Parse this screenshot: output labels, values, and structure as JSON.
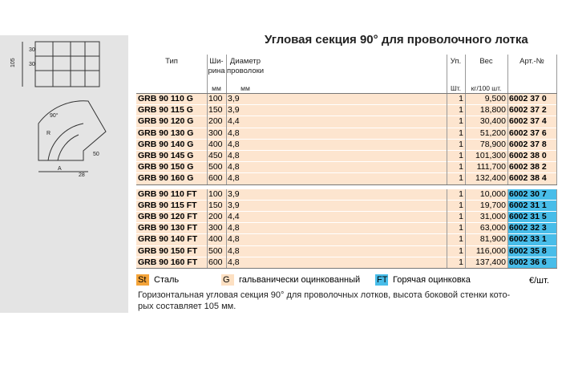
{
  "title": "Угловая секция 90° для проволочного лотка",
  "drawing": {
    "labels": [
      "105",
      "30",
      "30",
      "90°",
      "R",
      "A",
      "28",
      "50"
    ]
  },
  "table": {
    "headers": [
      {
        "lines": [
          "Тип"
        ]
      },
      {
        "lines": [
          "Ши-",
          "рина"
        ],
        "unit": "мм"
      },
      {
        "lines": [
          "Диаметр",
          "проволоки"
        ],
        "unit": "мм"
      },
      {
        "lines": [
          "Уп."
        ],
        "unit": "Шт."
      },
      {
        "lines": [
          "Вес"
        ],
        "unit": "кг/100 шт."
      },
      {
        "lines": [
          "Арт.-№"
        ]
      }
    ],
    "groups": [
      {
        "finish": "G",
        "rows": [
          [
            "GRB 90 110 G",
            "100",
            "3,9",
            "1",
            "9,500",
            "6002 37 0"
          ],
          [
            "GRB 90 115 G",
            "150",
            "3,9",
            "1",
            "18,800",
            "6002 37 2"
          ],
          [
            "GRB 90 120 G",
            "200",
            "4,4",
            "1",
            "30,400",
            "6002 37 4"
          ],
          [
            "GRB 90 130 G",
            "300",
            "4,8",
            "1",
            "51,200",
            "6002 37 6"
          ],
          [
            "GRB 90 140 G",
            "400",
            "4,8",
            "1",
            "78,900",
            "6002 37 8"
          ],
          [
            "GRB 90 145 G",
            "450",
            "4,8",
            "1",
            "101,300",
            "6002 38 0"
          ],
          [
            "GRB 90 150 G",
            "500",
            "4,8",
            "1",
            "111,700",
            "6002 38 2"
          ],
          [
            "GRB 90 160 G",
            "600",
            "4,8",
            "1",
            "132,400",
            "6002 38 4"
          ]
        ]
      },
      {
        "finish": "FT",
        "rows": [
          [
            "GRB 90 110 FT",
            "100",
            "3,9",
            "1",
            "10,000",
            "6002 30 7"
          ],
          [
            "GRB 90 115 FT",
            "150",
            "3,9",
            "1",
            "19,700",
            "6002 31 1"
          ],
          [
            "GRB 90 120 FT",
            "200",
            "4,4",
            "1",
            "31,000",
            "6002 31 5"
          ],
          [
            "GRB 90 130 FT",
            "300",
            "4,8",
            "1",
            "63,000",
            "6002 32 3"
          ],
          [
            "GRB 90 140 FT",
            "400",
            "4,8",
            "1",
            "81,900",
            "6002 33 1"
          ],
          [
            "GRB 90 150 FT",
            "500",
            "4,8",
            "1",
            "116,000",
            "6002 35 8"
          ],
          [
            "GRB 90 160 FT",
            "600",
            "4,8",
            "1",
            "137,400",
            "6002 36 6"
          ]
        ]
      }
    ]
  },
  "legend": [
    {
      "code": "St",
      "text": "Сталь"
    },
    {
      "code": "G",
      "text": "гальванически оцинкованный"
    },
    {
      "code": "FT",
      "text": "Горячая оцинковка"
    }
  ],
  "price_unit": "€/шт.",
  "description": [
    "Горизонтальная угловая секция 90° для проволочных лотков, высота боковой стенки кото-",
    "рых составляет 105 мм."
  ]
}
